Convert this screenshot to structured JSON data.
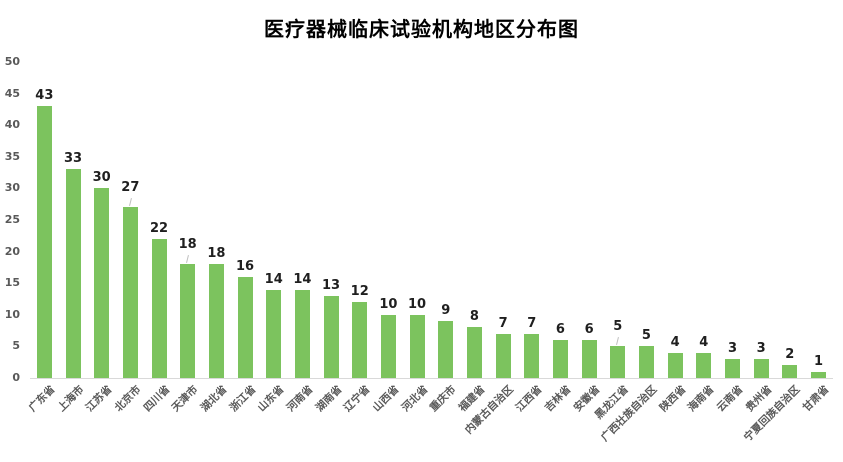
{
  "title": "医疗器械临床试验机构地区分布图",
  "colors": {
    "bar": "#7cc35e",
    "title_text": "#000000",
    "value_label_text": "#1f1f1f",
    "axis_tick_text": "#595959",
    "axis_line": "#d9d9d9",
    "background": "#ffffff"
  },
  "chart_data": {
    "type": "bar",
    "title": "医疗器械临床试验机构地区分布图",
    "xlabel": "",
    "ylabel": "",
    "categories": [
      "广东省",
      "上海市",
      "江苏省",
      "北京市",
      "四川省",
      "天津市",
      "湖北省",
      "浙江省",
      "山东省",
      "河南省",
      "湖南省",
      "辽宁省",
      "山西省",
      "河北省",
      "重庆市",
      "福建省",
      "内蒙古自治区",
      "江西省",
      "吉林省",
      "安徽省",
      "黑龙江省",
      "广西壮族自治区",
      "陕西省",
      "海南省",
      "云南省",
      "贵州省",
      "宁夏回族自治区",
      "甘肃省"
    ],
    "values": [
      43,
      33,
      30,
      27,
      22,
      18,
      18,
      16,
      14,
      14,
      13,
      12,
      10,
      10,
      9,
      8,
      7,
      7,
      6,
      6,
      5,
      5,
      4,
      4,
      3,
      3,
      2,
      1
    ],
    "ylim": [
      0,
      50
    ],
    "yticks": [
      0,
      5,
      10,
      15,
      20,
      25,
      30,
      35,
      40,
      45,
      50
    ],
    "grid": false,
    "legend": null,
    "data_labels": true,
    "leader_line_indices": [
      3,
      5,
      20
    ],
    "bar_color": "#7cc35e"
  }
}
